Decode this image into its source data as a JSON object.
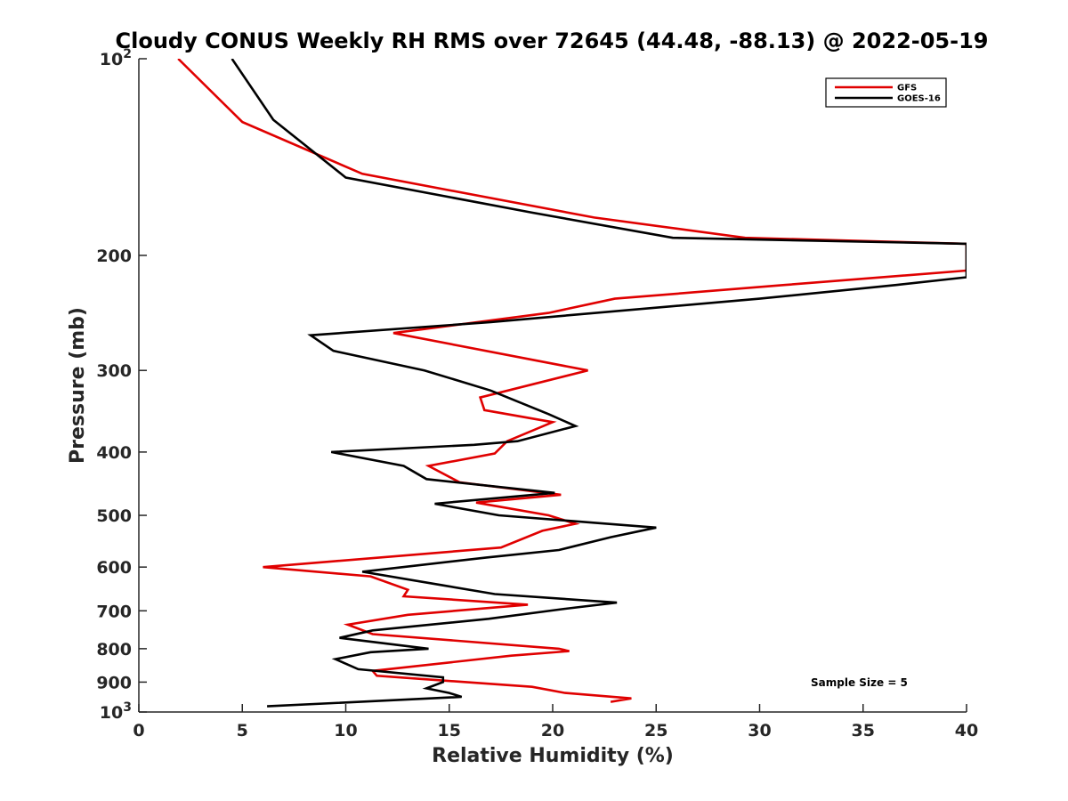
{
  "chart_data": {
    "type": "line",
    "title": "Cloudy CONUS Weekly RH RMS over 72645 (44.48, -88.13) @ 2022-05-19",
    "xlabel": "Relative Humidity (%)",
    "ylabel": "Pressure (mb)",
    "xlim": [
      0,
      40
    ],
    "ylim": [
      100,
      1000
    ],
    "yscale": "log",
    "y_reversed": true,
    "x_ticks": [
      "0",
      "5",
      "10",
      "15",
      "20",
      "25",
      "30",
      "35",
      "40"
    ],
    "y_ticks": [
      {
        "value": 100,
        "label": "10",
        "sup": "2"
      },
      {
        "value": 200,
        "label": "200",
        "sup": ""
      },
      {
        "value": 300,
        "label": "300",
        "sup": ""
      },
      {
        "value": 400,
        "label": "400",
        "sup": ""
      },
      {
        "value": 500,
        "label": "500",
        "sup": ""
      },
      {
        "value": 600,
        "label": "600",
        "sup": ""
      },
      {
        "value": 700,
        "label": "700",
        "sup": ""
      },
      {
        "value": 800,
        "label": "800",
        "sup": ""
      },
      {
        "value": 900,
        "label": "900",
        "sup": ""
      },
      {
        "value": 1000,
        "label": "10",
        "sup": "3"
      }
    ],
    "grid": false,
    "legend_position": "top-right",
    "annotation": "Sample Size = 5",
    "series": [
      {
        "name": "GFS",
        "color": "#e00000",
        "points": [
          [
            1.9,
            100
          ],
          [
            5.0,
            125
          ],
          [
            10.8,
            150
          ],
          [
            22.0,
            175
          ],
          [
            29.3,
            188
          ],
          [
            40.0,
            192
          ],
          [
            40.0,
            211
          ],
          [
            31.2,
            222
          ],
          [
            23.0,
            233
          ],
          [
            19.8,
            245
          ],
          [
            12.3,
            263
          ],
          [
            21.7,
            300
          ],
          [
            16.5,
            330
          ],
          [
            16.7,
            345
          ],
          [
            20.0,
            360
          ],
          [
            17.8,
            385
          ],
          [
            17.2,
            402
          ],
          [
            14.0,
            420
          ],
          [
            15.5,
            445
          ],
          [
            20.4,
            465
          ],
          [
            16.3,
            478
          ],
          [
            19.8,
            500
          ],
          [
            21.1,
            515
          ],
          [
            19.5,
            528
          ],
          [
            17.5,
            560
          ],
          [
            6.0,
            600
          ],
          [
            11.2,
            620
          ],
          [
            13.0,
            650
          ],
          [
            12.8,
            665
          ],
          [
            18.8,
            685
          ],
          [
            13.0,
            710
          ],
          [
            10.1,
            735
          ],
          [
            11.3,
            760
          ],
          [
            20.3,
            800
          ],
          [
            20.8,
            807
          ],
          [
            18.0,
            820
          ],
          [
            11.3,
            865
          ],
          [
            11.5,
            880
          ],
          [
            19.0,
            915
          ],
          [
            20.6,
            935
          ],
          [
            23.8,
            953
          ],
          [
            22.8,
            965
          ]
        ]
      },
      {
        "name": "GOES-16",
        "color": "#000000",
        "points": [
          [
            4.5,
            100
          ],
          [
            6.5,
            124
          ],
          [
            10.0,
            152
          ],
          [
            19.0,
            172
          ],
          [
            25.8,
            188
          ],
          [
            40.0,
            192
          ],
          [
            40.0,
            216
          ],
          [
            36.6,
            222
          ],
          [
            30.0,
            233
          ],
          [
            17.0,
            253
          ],
          [
            8.3,
            265
          ],
          [
            9.4,
            280
          ],
          [
            13.8,
            300
          ],
          [
            17.0,
            322
          ],
          [
            19.8,
            350
          ],
          [
            21.1,
            365
          ],
          [
            18.3,
            385
          ],
          [
            16.2,
            390
          ],
          [
            9.3,
            400
          ],
          [
            12.8,
            420
          ],
          [
            13.9,
            440
          ],
          [
            20.1,
            462
          ],
          [
            14.3,
            480
          ],
          [
            17.4,
            500
          ],
          [
            25.0,
            522
          ],
          [
            22.8,
            540
          ],
          [
            20.3,
            565
          ],
          [
            16.8,
            580
          ],
          [
            10.8,
            610
          ],
          [
            14.7,
            640
          ],
          [
            17.2,
            660
          ],
          [
            23.1,
            680
          ],
          [
            20.6,
            695
          ],
          [
            16.9,
            720
          ],
          [
            11.3,
            750
          ],
          [
            9.7,
            770
          ],
          [
            14.0,
            800
          ],
          [
            11.2,
            810
          ],
          [
            9.5,
            830
          ],
          [
            10.6,
            860
          ],
          [
            14.7,
            885
          ],
          [
            14.7,
            900
          ],
          [
            13.9,
            920
          ],
          [
            15.0,
            935
          ],
          [
            15.6,
            948
          ],
          [
            6.2,
            980
          ]
        ]
      }
    ]
  }
}
